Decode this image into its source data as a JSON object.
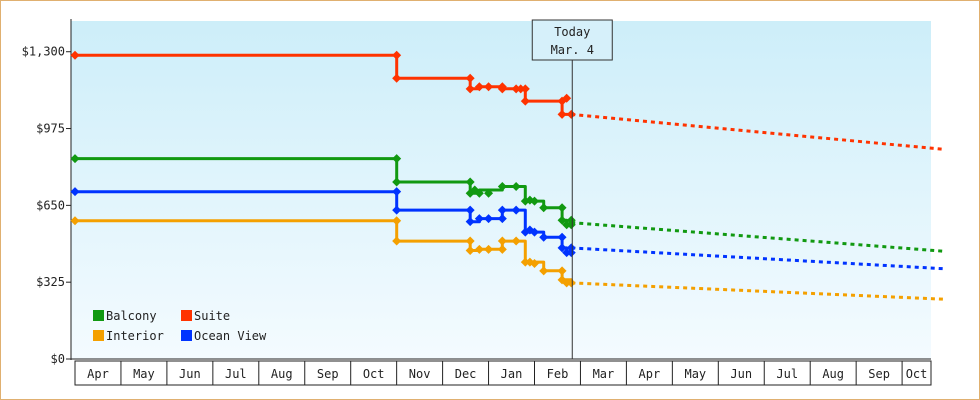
{
  "chart_data": {
    "type": "line",
    "title": "",
    "xlabel": "",
    "ylabel": "",
    "ylim": [
      0,
      1430
    ],
    "y_ticks": [
      0,
      325,
      650,
      975,
      1300
    ],
    "y_tick_labels": [
      "$0",
      "$325",
      "$650",
      "$975",
      "$1,300"
    ],
    "x_ticks": [
      "Apr",
      "May",
      "Jun",
      "Jul",
      "Aug",
      "Sep",
      "Oct",
      "Nov",
      "Dec",
      "Jan",
      "Feb",
      "Mar",
      "Apr",
      "May",
      "Jun",
      "Jul",
      "Aug",
      "Sep",
      "Oct"
    ],
    "today_marker": {
      "line1": "Today",
      "line2": "Mar. 4"
    },
    "legend_position": "bottom-left",
    "background_gradient": [
      "#cdeef9",
      "#f4fbff"
    ],
    "series": [
      {
        "name": "Balcony",
        "color": "#119911",
        "history": [
          [
            0,
            848
          ],
          [
            7.0,
            848
          ],
          [
            7.0,
            749
          ],
          [
            8.6,
            749
          ],
          [
            8.6,
            701
          ],
          [
            8.8,
            701
          ],
          [
            8.8,
            715
          ],
          [
            9.3,
            715
          ],
          [
            9.3,
            730
          ],
          [
            9.8,
            730
          ],
          [
            9.8,
            668
          ],
          [
            10.2,
            668
          ],
          [
            10.2,
            640
          ],
          [
            10.6,
            640
          ],
          [
            10.6,
            587
          ],
          [
            10.7,
            587
          ],
          [
            10.7,
            568
          ],
          [
            10.8,
            568
          ],
          [
            10.8,
            577
          ]
        ],
        "forecast": [
          [
            10.8,
            577
          ],
          [
            18.9,
            456
          ]
        ]
      },
      {
        "name": "Suite",
        "color": "#ff3300",
        "history": [
          [
            0,
            1285
          ],
          [
            7.0,
            1285
          ],
          [
            7.0,
            1188
          ],
          [
            8.6,
            1188
          ],
          [
            8.6,
            1143
          ],
          [
            8.8,
            1143
          ],
          [
            8.8,
            1152
          ],
          [
            9.3,
            1152
          ],
          [
            9.3,
            1143
          ],
          [
            9.8,
            1143
          ],
          [
            9.8,
            1091
          ],
          [
            10.6,
            1091
          ],
          [
            10.6,
            1035
          ],
          [
            10.8,
            1035
          ],
          [
            10.8,
            1035
          ]
        ],
        "forecast": [
          [
            10.8,
            1035
          ],
          [
            18.9,
            887
          ]
        ]
      },
      {
        "name": "Interior",
        "color": "#f4a000",
        "history": [
          [
            0,
            585
          ],
          [
            7.0,
            585
          ],
          [
            7.0,
            499
          ],
          [
            8.6,
            499
          ],
          [
            8.6,
            459
          ],
          [
            8.8,
            459
          ],
          [
            8.8,
            464
          ],
          [
            9.3,
            464
          ],
          [
            9.3,
            499
          ],
          [
            9.8,
            499
          ],
          [
            9.8,
            410
          ],
          [
            10.2,
            410
          ],
          [
            10.2,
            373
          ],
          [
            10.6,
            373
          ],
          [
            10.6,
            335
          ],
          [
            10.8,
            335
          ],
          [
            10.8,
            322
          ]
        ],
        "forecast": [
          [
            10.8,
            322
          ],
          [
            18.9,
            253
          ]
        ]
      },
      {
        "name": "Ocean View",
        "color": "#0033ff",
        "history": [
          [
            0,
            708
          ],
          [
            7.0,
            708
          ],
          [
            7.0,
            630
          ],
          [
            8.6,
            630
          ],
          [
            8.6,
            581
          ],
          [
            8.8,
            581
          ],
          [
            8.8,
            594
          ],
          [
            9.3,
            594
          ],
          [
            9.3,
            630
          ],
          [
            9.8,
            630
          ],
          [
            9.8,
            537
          ],
          [
            10.2,
            537
          ],
          [
            10.2,
            515
          ],
          [
            10.6,
            515
          ],
          [
            10.6,
            470
          ],
          [
            10.7,
            470
          ],
          [
            10.7,
            450
          ],
          [
            10.8,
            450
          ],
          [
            10.8,
            470
          ]
        ],
        "forecast": [
          [
            10.8,
            470
          ],
          [
            18.9,
            382
          ]
        ]
      }
    ],
    "markers": {
      "Balcony": [
        [
          0,
          848
        ],
        [
          7.0,
          848
        ],
        [
          7.0,
          749
        ],
        [
          8.6,
          749
        ],
        [
          8.6,
          701
        ],
        [
          8.7,
          715
        ],
        [
          8.8,
          701
        ],
        [
          9.0,
          701
        ],
        [
          9.3,
          730
        ],
        [
          9.6,
          730
        ],
        [
          9.8,
          668
        ],
        [
          9.9,
          672
        ],
        [
          10.0,
          668
        ],
        [
          10.2,
          640
        ],
        [
          10.6,
          640
        ],
        [
          10.6,
          587
        ],
        [
          10.7,
          568
        ],
        [
          10.8,
          587
        ],
        [
          10.8,
          568
        ]
      ],
      "Suite": [
        [
          0,
          1285
        ],
        [
          7.0,
          1285
        ],
        [
          7.0,
          1188
        ],
        [
          8.6,
          1188
        ],
        [
          8.6,
          1143
        ],
        [
          8.8,
          1152
        ],
        [
          9.0,
          1152
        ],
        [
          9.3,
          1152
        ],
        [
          9.3,
          1143
        ],
        [
          9.6,
          1143
        ],
        [
          9.7,
          1143
        ],
        [
          9.8,
          1143
        ],
        [
          9.8,
          1091
        ],
        [
          10.6,
          1091
        ],
        [
          10.7,
          1103
        ],
        [
          10.6,
          1035
        ],
        [
          10.8,
          1035
        ]
      ],
      "Interior": [
        [
          0,
          585
        ],
        [
          7.0,
          585
        ],
        [
          7.0,
          499
        ],
        [
          8.6,
          499
        ],
        [
          8.6,
          459
        ],
        [
          8.8,
          464
        ],
        [
          9.0,
          464
        ],
        [
          9.3,
          464
        ],
        [
          9.3,
          499
        ],
        [
          9.6,
          499
        ],
        [
          9.8,
          410
        ],
        [
          9.9,
          410
        ],
        [
          10.0,
          404
        ],
        [
          10.2,
          373
        ],
        [
          10.6,
          373
        ],
        [
          10.6,
          335
        ],
        [
          10.7,
          322
        ],
        [
          10.8,
          322
        ]
      ],
      "Ocean View": [
        [
          0,
          708
        ],
        [
          7.0,
          708
        ],
        [
          7.0,
          630
        ],
        [
          8.6,
          630
        ],
        [
          8.6,
          581
        ],
        [
          8.8,
          594
        ],
        [
          9.0,
          594
        ],
        [
          9.3,
          594
        ],
        [
          9.3,
          630
        ],
        [
          9.6,
          630
        ],
        [
          9.8,
          537
        ],
        [
          9.9,
          546
        ],
        [
          10.0,
          537
        ],
        [
          10.2,
          515
        ],
        [
          10.6,
          515
        ],
        [
          10.6,
          470
        ],
        [
          10.7,
          450
        ],
        [
          10.8,
          470
        ],
        [
          10.8,
          450
        ]
      ]
    }
  }
}
